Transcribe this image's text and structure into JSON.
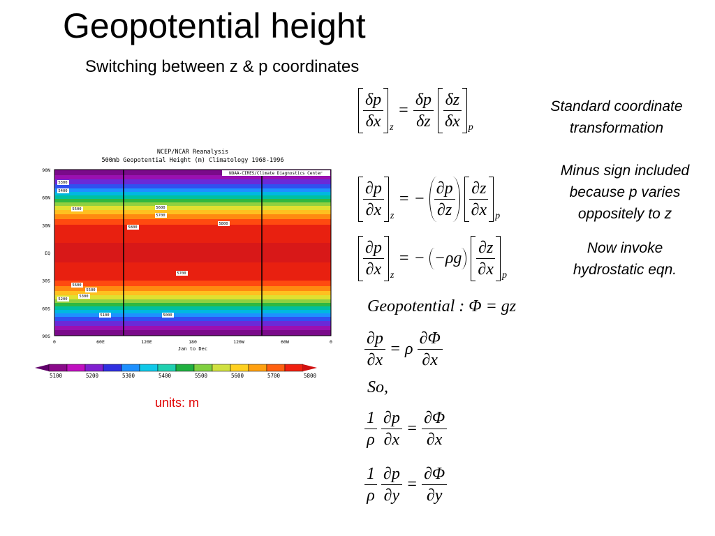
{
  "title": "Geopotential height",
  "subtitle": "Switching between z & p coordinates",
  "map": {
    "title_lines": [
      "NCEP/NCAR Reanalysis",
      "500mb Geopotential Height (m) Climatology 1968-1996"
    ],
    "credit": "NOAA-CIRES/Climate Diagnostics Center",
    "y_labels": [
      "90N",
      "60N",
      "30N",
      "EQ",
      "30S",
      "60S",
      "90S"
    ],
    "x_labels": [
      "0",
      "60E",
      "120E",
      "180",
      "120W",
      "60W",
      "0"
    ],
    "x_title": "Jan to Dec",
    "contour_labels": [
      "5300",
      "5400",
      "5500",
      "5600",
      "5700",
      "5800",
      "5800",
      "5700",
      "5600",
      "5500",
      "5300",
      "5200",
      "5100",
      "5000"
    ],
    "colorbar_labels": [
      "5100",
      "5200",
      "5300",
      "5400",
      "5500",
      "5600",
      "5700",
      "5800"
    ]
  },
  "units": "units: m",
  "notes": [
    "Standard coordinate transformation",
    "Minus sign included because p varies oppositely to z",
    "Now invoke hydrostatic eqn."
  ],
  "equations": [
    {
      "lhs": [
        "δp",
        "δx",
        "z"
      ],
      "op": "=",
      "f1": [
        "δp",
        "δz"
      ],
      "f2": [
        "δz",
        "δx",
        "p"
      ]
    },
    {
      "lhs": [
        "∂p",
        "∂x",
        "z"
      ],
      "op": "= −",
      "f1": [
        "∂p",
        "∂z"
      ],
      "f2": [
        "∂z",
        "∂x",
        "p"
      ]
    },
    {
      "lhs": [
        "∂p",
        "∂x",
        "z"
      ],
      "op": "= −",
      "mid": "−ρg",
      "f2": [
        "∂z",
        "∂x",
        "p"
      ]
    },
    {
      "text": "Geopotential : Φ = gz"
    },
    {
      "f1": [
        "∂p",
        "∂x"
      ],
      "op": "= ρ",
      "f2": [
        "∂Φ",
        "∂x"
      ]
    },
    {
      "text": "So,"
    },
    {
      "f0": [
        "1",
        "ρ"
      ],
      "f1": [
        "∂p",
        "∂x"
      ],
      "op": "=",
      "f2": [
        "∂Φ",
        "∂x"
      ]
    },
    {
      "f0": [
        "1",
        "ρ"
      ],
      "f1": [
        "∂p",
        "∂y"
      ],
      "op": "=",
      "f2": [
        "∂Φ",
        "∂y"
      ]
    }
  ]
}
